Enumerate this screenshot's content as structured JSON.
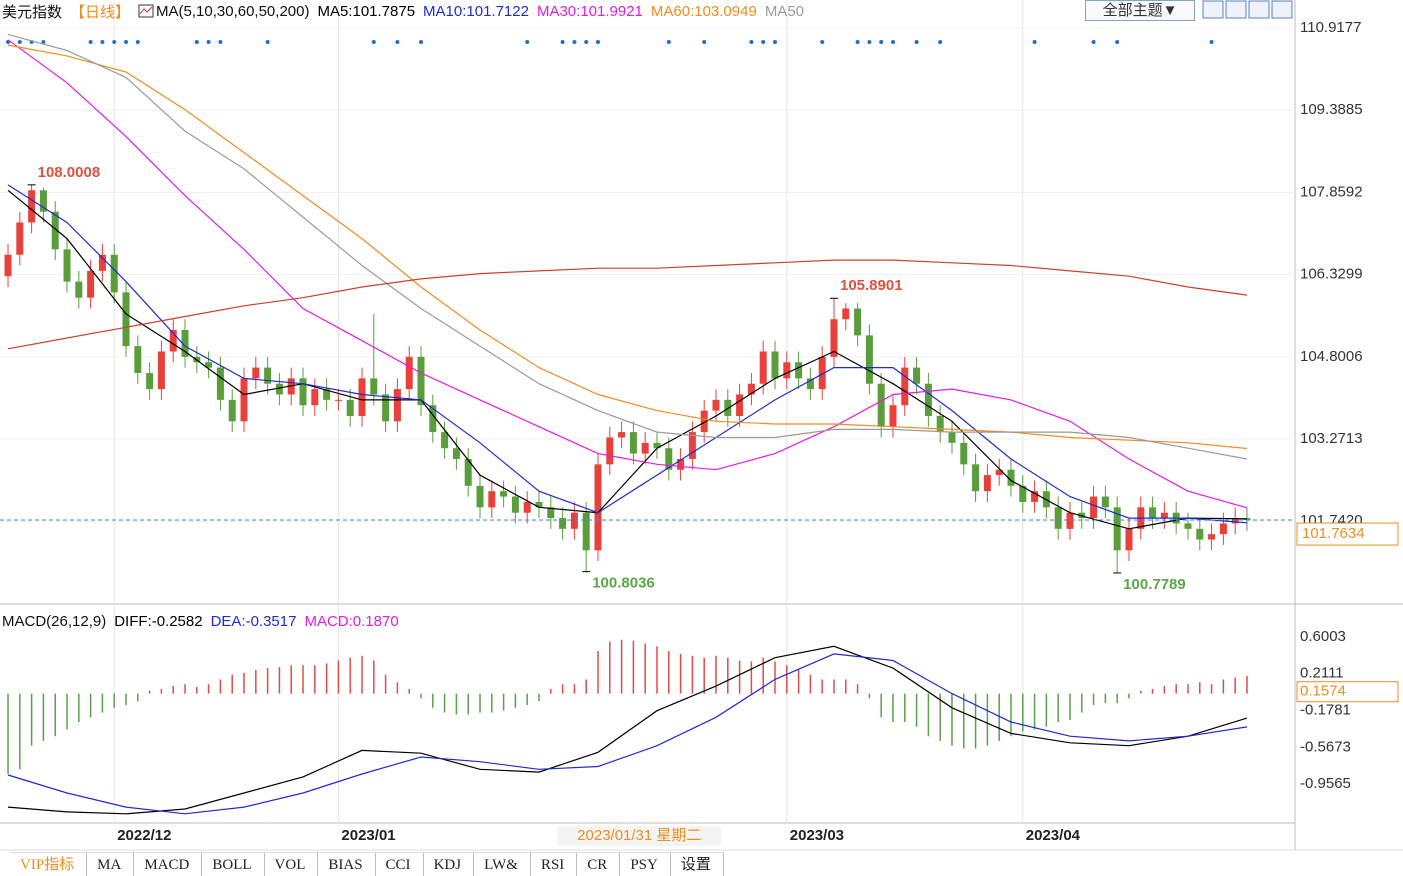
{
  "header": {
    "name": "美元指数",
    "period": "【日线】",
    "indicator": "MA(5,10,30,60,50,200)",
    "theme_button": "全部主题▼"
  },
  "chart_data": [
    {
      "type": "candlestick",
      "xlim": [
        -0.68,
        109.07
      ],
      "ylim": [
        100.22,
        111.44
      ],
      "yticks": [
        110.9177,
        109.3885,
        107.8592,
        106.3299,
        104.8006,
        103.2713,
        {
          "value": 101.742,
          "label": "101.7420"
        }
      ],
      "grid": true,
      "up_color": "#e8403a",
      "down_color": "#5a9e3c",
      "price_line_color": "#3b8fd6",
      "price_label_color": "#f08c1e",
      "candles": {
        "open": [
          106.3,
          106.7,
          107.3,
          107.9,
          107.5,
          106.8,
          106.2,
          105.9,
          106.4,
          106.7,
          106.0,
          105.0,
          104.5,
          104.2,
          104.9,
          105.3,
          104.8,
          104.7,
          104.6,
          104.0,
          103.6,
          104.4,
          104.6,
          104.3,
          104.1,
          104.4,
          103.9,
          104.2,
          104.0,
          104.0,
          103.7,
          104.4,
          104.1,
          103.6,
          104.2,
          104.8,
          103.9,
          103.4,
          103.1,
          102.9,
          102.4,
          102.0,
          102.3,
          102.2,
          101.9,
          102.1,
          102.0,
          101.8,
          101.6,
          101.9,
          101.2,
          102.8,
          103.3,
          103.4,
          103.0,
          103.2,
          103.1,
          102.7,
          102.9,
          103.4,
          103.8,
          104.0,
          103.7,
          104.1,
          104.3,
          104.9,
          104.4,
          104.7,
          104.4,
          104.2,
          104.8,
          105.5,
          105.7,
          105.2,
          104.3,
          103.5,
          103.9,
          104.6,
          104.3,
          103.7,
          103.4,
          103.2,
          102.8,
          102.3,
          102.6,
          102.7,
          102.4,
          102.1,
          102.3,
          102.0,
          101.6,
          101.9,
          101.8,
          102.2,
          102.0,
          101.2,
          101.6,
          102.0,
          101.8,
          101.9,
          101.7,
          101.6,
          101.4,
          101.5,
          101.7,
          101.8
        ],
        "high": [
          106.9,
          107.5,
          108.0008,
          107.95,
          107.7,
          107.0,
          106.4,
          106.6,
          106.9,
          106.9,
          106.2,
          105.2,
          104.7,
          105.1,
          105.5,
          105.5,
          105.0,
          104.9,
          104.8,
          104.2,
          104.6,
          104.8,
          104.8,
          104.5,
          104.6,
          104.6,
          104.4,
          104.4,
          104.2,
          104.2,
          104.6,
          105.6,
          104.3,
          104.4,
          105.0,
          105.0,
          104.1,
          103.6,
          103.3,
          103.1,
          102.6,
          102.5,
          102.5,
          102.4,
          102.3,
          102.3,
          102.2,
          102.0,
          102.1,
          102.1,
          103.0,
          103.5,
          103.6,
          103.6,
          103.4,
          103.4,
          103.3,
          103.1,
          103.6,
          104.0,
          104.2,
          104.2,
          104.3,
          104.5,
          105.1,
          105.1,
          104.9,
          104.9,
          104.6,
          105.0,
          105.8901,
          105.8,
          105.8,
          105.4,
          104.5,
          104.1,
          104.8,
          104.8,
          104.5,
          103.9,
          103.6,
          103.4,
          103.0,
          102.8,
          102.9,
          102.9,
          102.6,
          102.5,
          102.5,
          102.2,
          102.1,
          102.1,
          102.4,
          102.4,
          102.2,
          101.8,
          102.2,
          102.2,
          102.1,
          102.1,
          101.9,
          101.8,
          101.7,
          101.9,
          102.0,
          102.0
        ],
        "low": [
          106.1,
          106.5,
          107.1,
          107.3,
          106.6,
          106.0,
          105.7,
          105.7,
          106.2,
          105.8,
          104.8,
          104.3,
          104.0,
          104.0,
          104.7,
          104.6,
          104.5,
          104.4,
          103.8,
          103.4,
          103.4,
          104.2,
          104.1,
          103.9,
          103.9,
          103.7,
          103.7,
          103.8,
          103.8,
          103.5,
          103.5,
          103.9,
          103.4,
          103.4,
          104.0,
          103.7,
          103.2,
          102.9,
          102.7,
          102.2,
          101.8,
          101.8,
          102.0,
          101.7,
          101.7,
          101.8,
          101.6,
          101.4,
          101.4,
          100.8036,
          101.0,
          102.6,
          103.1,
          102.8,
          102.8,
          102.9,
          102.5,
          102.5,
          102.7,
          103.2,
          103.6,
          103.5,
          103.5,
          103.9,
          104.1,
          104.2,
          104.2,
          104.2,
          104.0,
          104.0,
          104.6,
          105.3,
          105.0,
          104.1,
          103.3,
          103.3,
          103.7,
          104.1,
          103.5,
          103.2,
          103.0,
          102.6,
          102.1,
          102.1,
          102.4,
          102.2,
          101.9,
          101.9,
          101.8,
          101.4,
          101.4,
          101.6,
          101.6,
          101.8,
          100.7789,
          101.0,
          101.4,
          101.6,
          101.6,
          101.5,
          101.4,
          101.2,
          101.2,
          101.3,
          101.5,
          101.56
        ],
        "close": [
          106.7,
          107.3,
          107.9,
          107.5,
          106.8,
          106.2,
          105.9,
          106.4,
          106.7,
          106.0,
          105.0,
          104.5,
          104.2,
          104.9,
          105.3,
          104.8,
          104.7,
          104.6,
          104.0,
          103.6,
          104.4,
          104.6,
          104.3,
          104.1,
          104.4,
          103.9,
          104.2,
          104.0,
          104.0,
          103.7,
          104.4,
          104.1,
          103.6,
          104.2,
          104.8,
          103.9,
          103.4,
          103.1,
          102.9,
          102.4,
          102.0,
          102.3,
          102.2,
          101.9,
          102.1,
          102.0,
          101.8,
          101.6,
          101.9,
          101.2,
          102.8,
          103.3,
          103.4,
          103.0,
          103.2,
          103.1,
          102.7,
          102.9,
          103.4,
          103.8,
          104.0,
          103.7,
          104.1,
          104.3,
          104.9,
          104.4,
          104.7,
          104.4,
          104.2,
          104.8,
          105.5,
          105.7,
          105.2,
          104.3,
          103.5,
          103.9,
          104.6,
          104.3,
          103.7,
          103.4,
          103.2,
          102.8,
          102.3,
          102.6,
          102.7,
          102.4,
          102.1,
          102.3,
          102.0,
          101.6,
          101.9,
          101.8,
          102.2,
          102.0,
          101.2,
          101.6,
          102.0,
          101.8,
          101.9,
          101.7,
          101.6,
          101.4,
          101.5,
          101.7,
          101.8,
          101.7634
        ]
      },
      "series": [
        {
          "name": "MA5:101.7875",
          "color": "#000000",
          "x": [
            0,
            5,
            10,
            15,
            20,
            25,
            30,
            35,
            40,
            45,
            50,
            55,
            60,
            65,
            70,
            75,
            80,
            85,
            90,
            95,
            100,
            105
          ],
          "values": [
            107.9,
            107.0,
            105.6,
            104.9,
            104.1,
            104.3,
            104.0,
            104.0,
            102.6,
            102.0,
            101.9,
            103.1,
            103.7,
            104.4,
            104.9,
            104.3,
            103.6,
            102.5,
            101.9,
            101.6,
            101.8,
            101.7875
          ]
        },
        {
          "name": "MA10:101.7122",
          "color": "#1f2bd0",
          "x": [
            0,
            5,
            10,
            15,
            20,
            25,
            30,
            35,
            40,
            45,
            50,
            55,
            60,
            65,
            70,
            75,
            80,
            85,
            90,
            95,
            100,
            105
          ],
          "values": [
            108.0,
            107.3,
            106.2,
            105.0,
            104.4,
            104.3,
            104.1,
            104.0,
            103.2,
            102.3,
            101.9,
            102.6,
            103.3,
            104.0,
            104.6,
            104.6,
            103.8,
            102.9,
            102.2,
            101.8,
            101.8,
            101.7122
          ]
        },
        {
          "name": "MA30:101.9921",
          "color": "#e619e6",
          "x": [
            0,
            5,
            10,
            15,
            20,
            25,
            30,
            35,
            40,
            45,
            50,
            55,
            60,
            65,
            70,
            75,
            80,
            85,
            90,
            95,
            100,
            105
          ],
          "values": [
            110.7,
            109.9,
            108.9,
            107.8,
            106.8,
            105.7,
            105.1,
            104.5,
            104.0,
            103.5,
            103.0,
            102.8,
            102.7,
            103.0,
            103.5,
            104.1,
            104.2,
            104.0,
            103.6,
            102.9,
            102.3,
            101.9921
          ]
        },
        {
          "name": "MA60:103.0949",
          "color": "#f08c1e",
          "x": [
            0,
            5,
            10,
            15,
            20,
            25,
            30,
            35,
            40,
            45,
            50,
            55,
            60,
            65,
            70,
            75,
            80,
            85,
            90,
            95,
            100,
            105
          ],
          "values": [
            110.6,
            110.4,
            110.1,
            109.4,
            108.6,
            107.8,
            107.0,
            106.1,
            105.3,
            104.6,
            104.1,
            103.8,
            103.6,
            103.55,
            103.55,
            103.5,
            103.45,
            103.4,
            103.3,
            103.25,
            103.2,
            103.0949
          ]
        },
        {
          "name": "MA50",
          "color": "#9a9a9a",
          "x": [
            0,
            5,
            10,
            15,
            20,
            25,
            30,
            35,
            40,
            45,
            50,
            55,
            60,
            65,
            70,
            75,
            80,
            85,
            90,
            95,
            100,
            105
          ],
          "values": [
            110.8,
            110.5,
            110.0,
            109.0,
            108.3,
            107.4,
            106.5,
            105.7,
            105.0,
            104.3,
            103.8,
            103.4,
            103.3,
            103.3,
            103.45,
            103.45,
            103.4,
            103.4,
            103.4,
            103.3,
            103.1,
            102.9
          ]
        },
        {
          "color": "#c8412d",
          "x": [
            0,
            5,
            10,
            15,
            20,
            25,
            30,
            35,
            40,
            45,
            50,
            55,
            60,
            65,
            70,
            75,
            80,
            85,
            90,
            95,
            100,
            105
          ],
          "values": [
            104.95,
            105.15,
            105.35,
            105.55,
            105.75,
            105.9,
            106.1,
            106.25,
            106.35,
            106.4,
            106.45,
            106.45,
            106.5,
            106.55,
            106.6,
            106.6,
            106.55,
            106.5,
            106.4,
            106.3,
            106.1,
            105.95
          ]
        }
      ],
      "annotations": [
        {
          "x": 2,
          "value": 108.0008,
          "color": "#e0503c"
        },
        {
          "x": 70,
          "value": 105.8901,
          "color": "#e0503c"
        },
        {
          "x": 49,
          "value": 100.8036,
          "color": "#5aa74a"
        },
        {
          "x": 94,
          "value": 100.7789,
          "color": "#5aa74a"
        }
      ],
      "signals": {
        "color": "#1d6fd0",
        "x": [
          0,
          1,
          2,
          3,
          7,
          8,
          9,
          10,
          11,
          16,
          17,
          18,
          22,
          31,
          33,
          35,
          44,
          47,
          48,
          49,
          50,
          56,
          59,
          63,
          64,
          65,
          69,
          72,
          73,
          74,
          75,
          77,
          79,
          87,
          92,
          94,
          102
        ]
      }
    },
    {
      "type": "macd",
      "title": "MACD(26,12,9)",
      "xlim": [
        -0.68,
        109.07
      ],
      "ylim": [
        -1.357,
        0.937
      ],
      "yticks": [
        0.6003,
        0.2111,
        -0.1781,
        -0.5673,
        -0.9565
      ],
      "xticks": [
        {
          "value": 9,
          "label": "2022/12"
        },
        {
          "value": 28,
          "label": "2023/01"
        },
        {
          "value": 66,
          "label": "2023/03"
        },
        {
          "value": 86,
          "label": "2023/04"
        }
      ],
      "cursor": {
        "x": 53.5,
        "label": "2023/01/31 星期二"
      },
      "marker": {
        "value": 0.1574,
        "color": "#f08c1e"
      },
      "series": [
        {
          "name": "DIFF:-0.2582",
          "color": "#000000",
          "x": [
            0,
            5,
            10,
            15,
            20,
            25,
            30,
            35,
            40,
            45,
            50,
            55,
            60,
            65,
            70,
            75,
            80,
            85,
            90,
            95,
            100,
            105
          ],
          "values": [
            -1.2,
            -1.25,
            -1.27,
            -1.22,
            -1.05,
            -0.88,
            -0.6,
            -0.63,
            -0.8,
            -0.83,
            -0.62,
            -0.18,
            0.08,
            0.38,
            0.5,
            0.27,
            -0.15,
            -0.42,
            -0.52,
            -0.55,
            -0.45,
            -0.2582
          ]
        },
        {
          "name": "DEA:-0.3517",
          "color": "#1f2bd0",
          "x": [
            0,
            5,
            10,
            15,
            20,
            25,
            30,
            35,
            40,
            45,
            50,
            55,
            60,
            65,
            70,
            75,
            80,
            85,
            90,
            95,
            100,
            105
          ],
          "values": [
            -0.86,
            -1.05,
            -1.2,
            -1.27,
            -1.2,
            -1.05,
            -0.85,
            -0.67,
            -0.72,
            -0.8,
            -0.77,
            -0.55,
            -0.25,
            0.15,
            0.42,
            0.35,
            0.0,
            -0.3,
            -0.45,
            -0.5,
            -0.45,
            -0.3517
          ]
        }
      ],
      "histogram": {
        "name": "MACD:0.1870",
        "name_color": "#e619e6",
        "up_color": "#e34b4b",
        "down_color": "#5aa04a",
        "values": [
          -0.85,
          -0.8,
          -0.55,
          -0.5,
          -0.45,
          -0.38,
          -0.3,
          -0.25,
          -0.2,
          -0.15,
          -0.12,
          -0.08,
          0.03,
          0.05,
          0.08,
          0.1,
          0.07,
          0.1,
          0.15,
          0.2,
          0.22,
          0.25,
          0.27,
          0.28,
          0.3,
          0.3,
          0.3,
          0.32,
          0.35,
          0.38,
          0.4,
          0.35,
          0.2,
          0.12,
          0.05,
          -0.05,
          -0.15,
          -0.2,
          -0.22,
          -0.22,
          -0.2,
          -0.2,
          -0.18,
          -0.15,
          -0.12,
          -0.08,
          0.05,
          0.1,
          0.1,
          0.15,
          0.45,
          0.55,
          0.57,
          0.56,
          0.53,
          0.5,
          0.45,
          0.42,
          0.4,
          0.38,
          0.4,
          0.38,
          0.35,
          0.34,
          0.38,
          0.34,
          0.3,
          0.25,
          0.2,
          0.15,
          0.15,
          0.15,
          0.1,
          -0.05,
          -0.25,
          -0.3,
          -0.3,
          -0.35,
          -0.45,
          -0.5,
          -0.55,
          -0.58,
          -0.58,
          -0.55,
          -0.5,
          -0.45,
          -0.4,
          -0.38,
          -0.35,
          -0.3,
          -0.28,
          -0.2,
          -0.12,
          -0.1,
          -0.1,
          -0.05,
          0.03,
          0.05,
          0.08,
          0.1,
          0.1,
          0.12,
          0.1,
          0.15,
          0.17,
          0.187
        ]
      }
    }
  ],
  "tabs": [
    "VIP指标",
    "MA",
    "MACD",
    "BOLL",
    "VOL",
    "BIAS",
    "CCI",
    "KDJ",
    "LW&",
    "RSI",
    "CR",
    "PSY",
    "设置"
  ]
}
